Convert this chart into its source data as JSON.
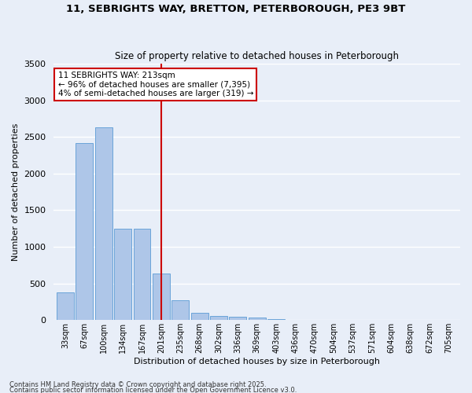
{
  "title_line1": "11, SEBRIGHTS WAY, BRETTON, PETERBOROUGH, PE3 9BT",
  "title_line2": "Size of property relative to detached houses in Peterborough",
  "xlabel": "Distribution of detached houses by size in Peterborough",
  "ylabel": "Number of detached properties",
  "bar_labels": [
    "33sqm",
    "67sqm",
    "100sqm",
    "134sqm",
    "167sqm",
    "201sqm",
    "235sqm",
    "268sqm",
    "302sqm",
    "336sqm",
    "369sqm",
    "403sqm",
    "436sqm",
    "470sqm",
    "504sqm",
    "537sqm",
    "571sqm",
    "604sqm",
    "638sqm",
    "672sqm",
    "705sqm"
  ],
  "bar_values": [
    380,
    2420,
    2630,
    1250,
    1250,
    640,
    270,
    105,
    60,
    45,
    30,
    15,
    5,
    2,
    1,
    0,
    0,
    0,
    0,
    0,
    0
  ],
  "bar_color": "#aec6e8",
  "bar_edge_color": "#5b9bd5",
  "vline_index": 5,
  "vline_color": "#cc0000",
  "annotation_text": "11 SEBRIGHTS WAY: 213sqm\n← 96% of detached houses are smaller (7,395)\n4% of semi-detached houses are larger (319) →",
  "annotation_box_edge": "#cc0000",
  "ylim": [
    0,
    3500
  ],
  "yticks": [
    0,
    500,
    1000,
    1500,
    2000,
    2500,
    3000,
    3500
  ],
  "footer_line1": "Contains HM Land Registry data © Crown copyright and database right 2025.",
  "footer_line2": "Contains public sector information licensed under the Open Government Licence v3.0.",
  "background_color": "#e8eef8",
  "plot_background": "#e8eef8",
  "grid_color": "#ffffff"
}
